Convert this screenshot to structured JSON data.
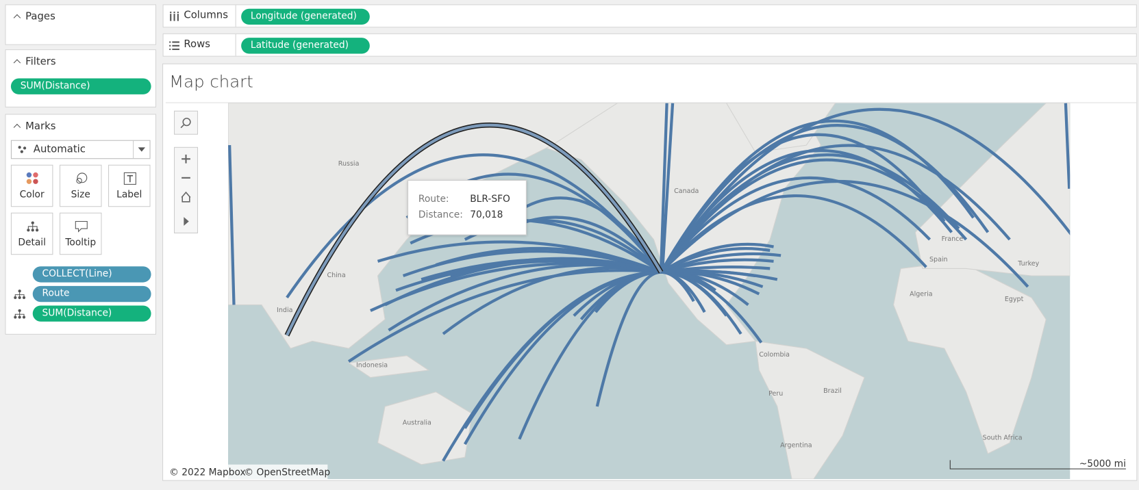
{
  "sidebar": {
    "pages": {
      "title": "Pages"
    },
    "filters": {
      "title": "Filters",
      "pills": [
        "SUM(Distance)"
      ]
    },
    "marks": {
      "title": "Marks",
      "mark_type": "Automatic",
      "buttons": [
        "Color",
        "Size",
        "Label",
        "Detail",
        "Tooltip"
      ],
      "pills": [
        "COLLECT(Line)",
        "Route",
        "SUM(Distance)"
      ]
    }
  },
  "shelves": {
    "columns": {
      "label": "Columns",
      "pills": [
        "Longitude (generated)"
      ]
    },
    "rows": {
      "label": "Rows",
      "pills": [
        "Latitude (generated)"
      ]
    }
  },
  "view": {
    "title": "Map chart",
    "tooltip": {
      "rows": [
        [
          "Route:",
          "BLR-SFO"
        ],
        [
          "Distance:",
          "70,018"
        ]
      ]
    },
    "map_labels": [
      "Russia",
      "China",
      "India",
      "Canada",
      "Indonesia",
      "Australia",
      "Colombia",
      "Peru",
      "Brazil",
      "Argentina",
      "Algeria",
      "Egypt",
      "Turkey",
      "France",
      "Spain",
      "South Africa"
    ],
    "attribution": [
      "© 2022 Mapbox",
      "© OpenStreetMap"
    ],
    "scale": "~5000 mi"
  }
}
